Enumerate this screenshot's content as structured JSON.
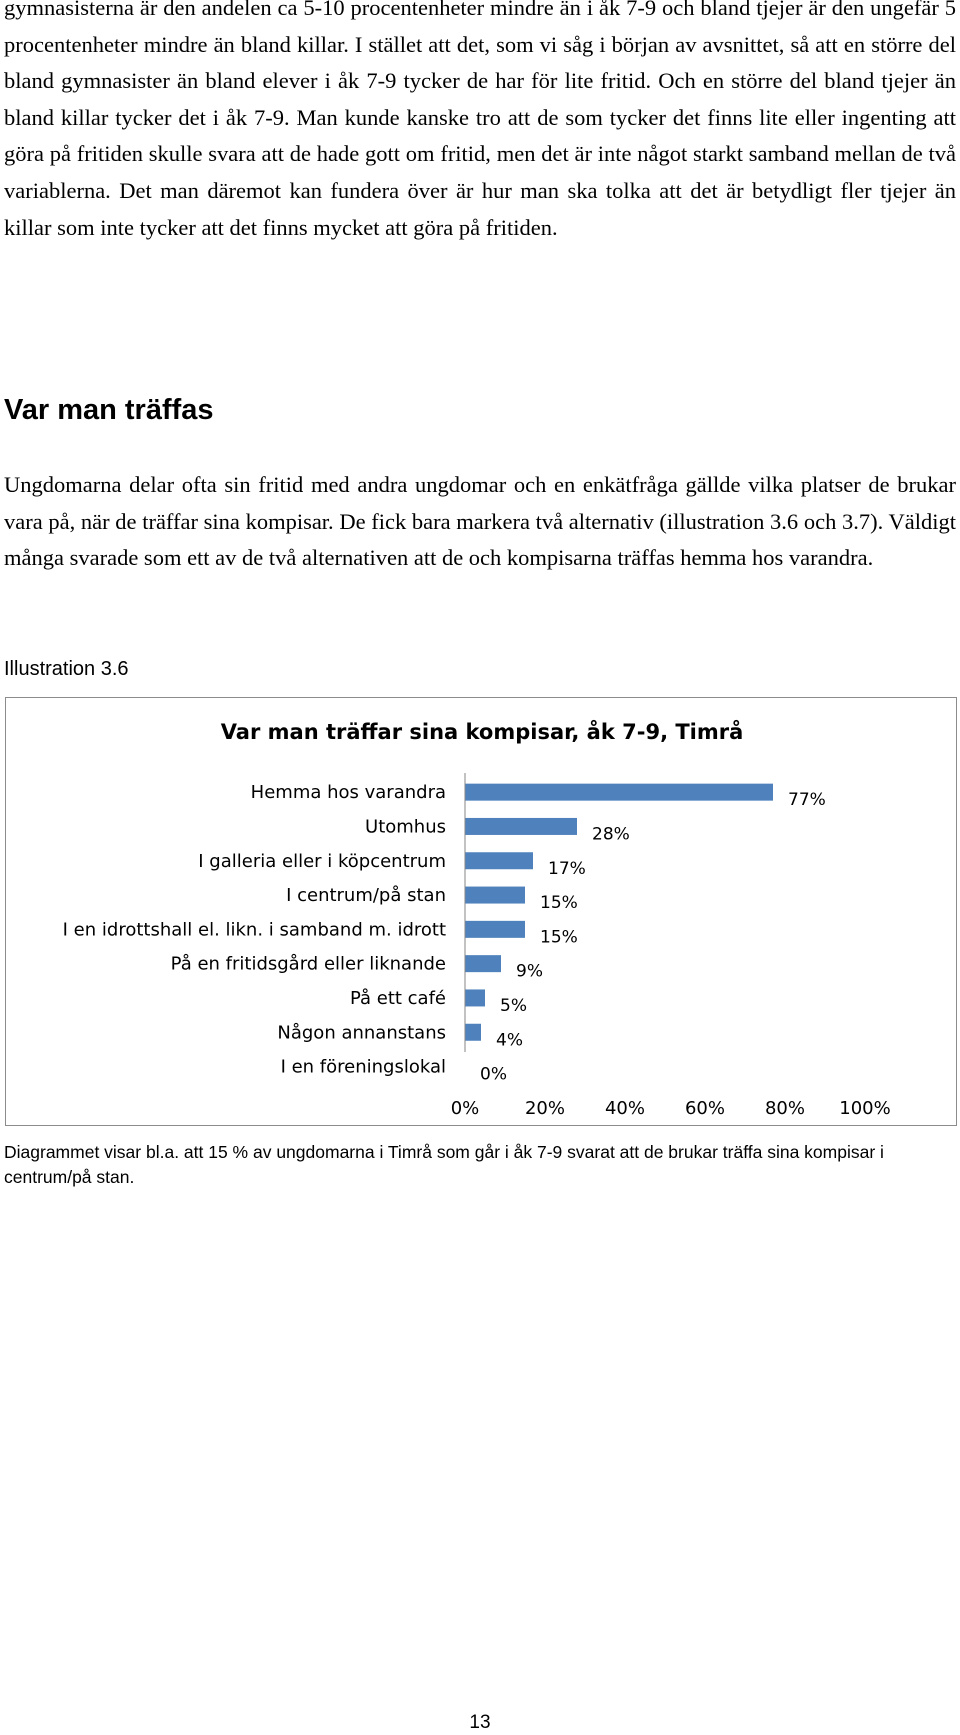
{
  "paragraph1": "gymnasisterna är den andelen ca 5-10 procentenheter mindre än i åk 7-9 och bland tjejer är den ungefär 5 procentenheter mindre än bland killar. I stället att det, som vi såg i början av avsnittet, så att en större del bland gymnasister än bland elever i åk 7-9 tycker de har för lite fritid. Och en större del bland tjejer än bland killar tycker det i åk 7-9. Man kunde kanske tro att de som tycker det finns lite eller ingenting att göra på fritiden skulle svara att de hade gott om fritid, men det är inte något starkt samband mellan de två variablerna. Det man däremot kan fundera över är hur man ska tolka att det är betydligt fler tjejer än killar som inte tycker att det finns mycket att göra på fritiden.",
  "heading": "Var man träffas",
  "paragraph2": "Ungdomarna delar ofta sin fritid med andra ungdomar och en enkätfråga gällde vilka platser de brukar vara på, när de träffar sina kompisar. De fick bara markera två alternativ (illustration 3.6 och 3.7). Väldigt många svarade som ett av de två alternativen att de och kompisarna träffas hemma hos varandra.",
  "illustration_label": "Illustration 3.6",
  "caption": "Diagrammet visar bl.a. att 15 % av ungdomarna i Timrå som går i åk 7-9 svarat att de brukar träffa sina kompisar i centrum/på stan.",
  "page_number": "13",
  "chart_data": {
    "type": "bar",
    "orientation": "horizontal",
    "title": "Var man träffar sina kompisar, åk 7-9, Timrå",
    "categories": [
      "Hemma hos varandra",
      "Utomhus",
      "I galleria eller i köpcentrum",
      "I centrum/på stan",
      "I en idrottshall el. likn. i samband m. idrott",
      "På en fritidsgård eller liknande",
      "På ett café",
      "Någon annanstans",
      "I en föreningslokal"
    ],
    "values": [
      77,
      28,
      17,
      15,
      15,
      9,
      5,
      4,
      0
    ],
    "value_labels": [
      "77%",
      "28%",
      "17%",
      "15%",
      "15%",
      "9%",
      "5%",
      "4%",
      "0%"
    ],
    "xlim": [
      0,
      100
    ],
    "xticks": [
      "0%",
      "20%",
      "40%",
      "60%",
      "80%",
      "100%"
    ],
    "bar_color": "#4f81bd",
    "grid": false,
    "legend": "none"
  }
}
